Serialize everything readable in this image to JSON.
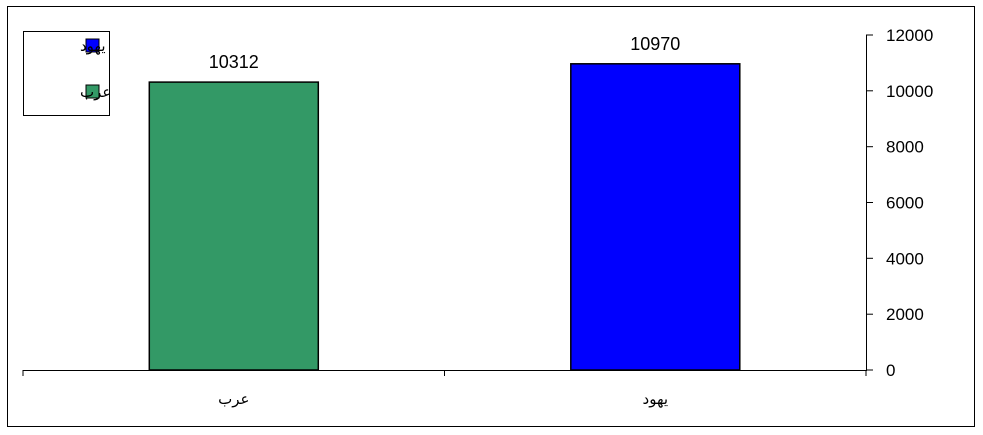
{
  "chart_data": {
    "type": "bar",
    "categories": [
      "عرب",
      "يهود"
    ],
    "values": [
      10312,
      10970
    ],
    "colors": [
      "#339966",
      "#0000ff"
    ],
    "data_labels": [
      "10312",
      "10970"
    ],
    "y_ticks": [
      "0",
      "2000",
      "4000",
      "6000",
      "8000",
      "10000",
      "12000"
    ],
    "ylim": [
      0,
      12000
    ],
    "y_axis_side": "right",
    "grid": false,
    "legend_position": "top-left",
    "legend": [
      {
        "label": "يهود",
        "color": "#0000ff"
      },
      {
        "label": "عرب",
        "color": "#339966"
      }
    ]
  }
}
